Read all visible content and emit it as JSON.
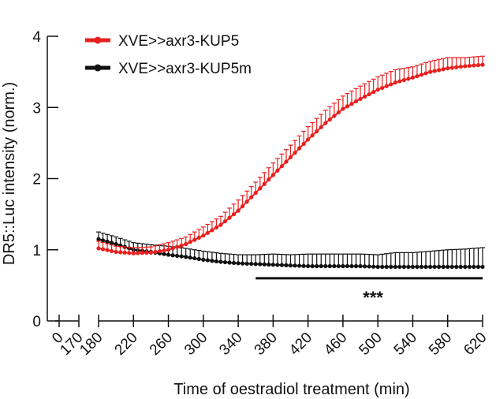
{
  "chart_data": {
    "type": "line",
    "title": "",
    "xlabel": "Time of oestradiol treatment (min)",
    "ylabel": "DR5::Luc intensity (norm.)",
    "ylim": [
      0,
      4
    ],
    "yticks": [
      0,
      1,
      2,
      3,
      4
    ],
    "xticks": [
      "0",
      "170",
      "180",
      "220",
      "260",
      "300",
      "340",
      "380",
      "420",
      "460",
      "500",
      "540",
      "580",
      "620"
    ],
    "x_break": "0 to 170 then axis break to 180",
    "grid": false,
    "legend": "top-left",
    "series": [
      {
        "name": "XVE>>axr3-KUP5",
        "color": "#e8201f",
        "x": [
          180,
          200,
          220,
          240,
          260,
          280,
          300,
          320,
          340,
          360,
          380,
          400,
          420,
          440,
          460,
          480,
          500,
          520,
          540,
          560,
          580,
          600,
          620
        ],
        "y": [
          1.02,
          0.97,
          0.95,
          0.96,
          1.0,
          1.08,
          1.2,
          1.35,
          1.55,
          1.8,
          2.05,
          2.3,
          2.55,
          2.78,
          2.98,
          3.12,
          3.25,
          3.35,
          3.42,
          3.5,
          3.55,
          3.58,
          3.6
        ],
        "err": [
          0.1,
          0.08,
          0.08,
          0.08,
          0.1,
          0.1,
          0.12,
          0.12,
          0.15,
          0.15,
          0.17,
          0.17,
          0.18,
          0.18,
          0.18,
          0.18,
          0.18,
          0.18,
          0.15,
          0.15,
          0.15,
          0.12,
          0.12
        ]
      },
      {
        "name": "XVE>>axr3-KUP5m",
        "color": "#111111",
        "x": [
          180,
          200,
          220,
          240,
          260,
          280,
          300,
          320,
          340,
          360,
          380,
          400,
          420,
          440,
          460,
          480,
          500,
          520,
          540,
          560,
          580,
          600,
          620
        ],
        "y": [
          1.15,
          1.08,
          1.0,
          0.97,
          0.93,
          0.9,
          0.86,
          0.83,
          0.81,
          0.8,
          0.79,
          0.78,
          0.77,
          0.77,
          0.77,
          0.77,
          0.76,
          0.76,
          0.76,
          0.76,
          0.76,
          0.76,
          0.76
        ],
        "err": [
          0.1,
          0.1,
          0.1,
          0.1,
          0.12,
          0.12,
          0.12,
          0.12,
          0.12,
          0.13,
          0.15,
          0.15,
          0.17,
          0.17,
          0.17,
          0.17,
          0.17,
          0.2,
          0.2,
          0.22,
          0.24,
          0.25,
          0.27
        ]
      }
    ],
    "annotations": [
      {
        "type": "significance-bar",
        "x_start": 360,
        "x_end": 620,
        "y": 0.6,
        "label": "***"
      }
    ]
  }
}
